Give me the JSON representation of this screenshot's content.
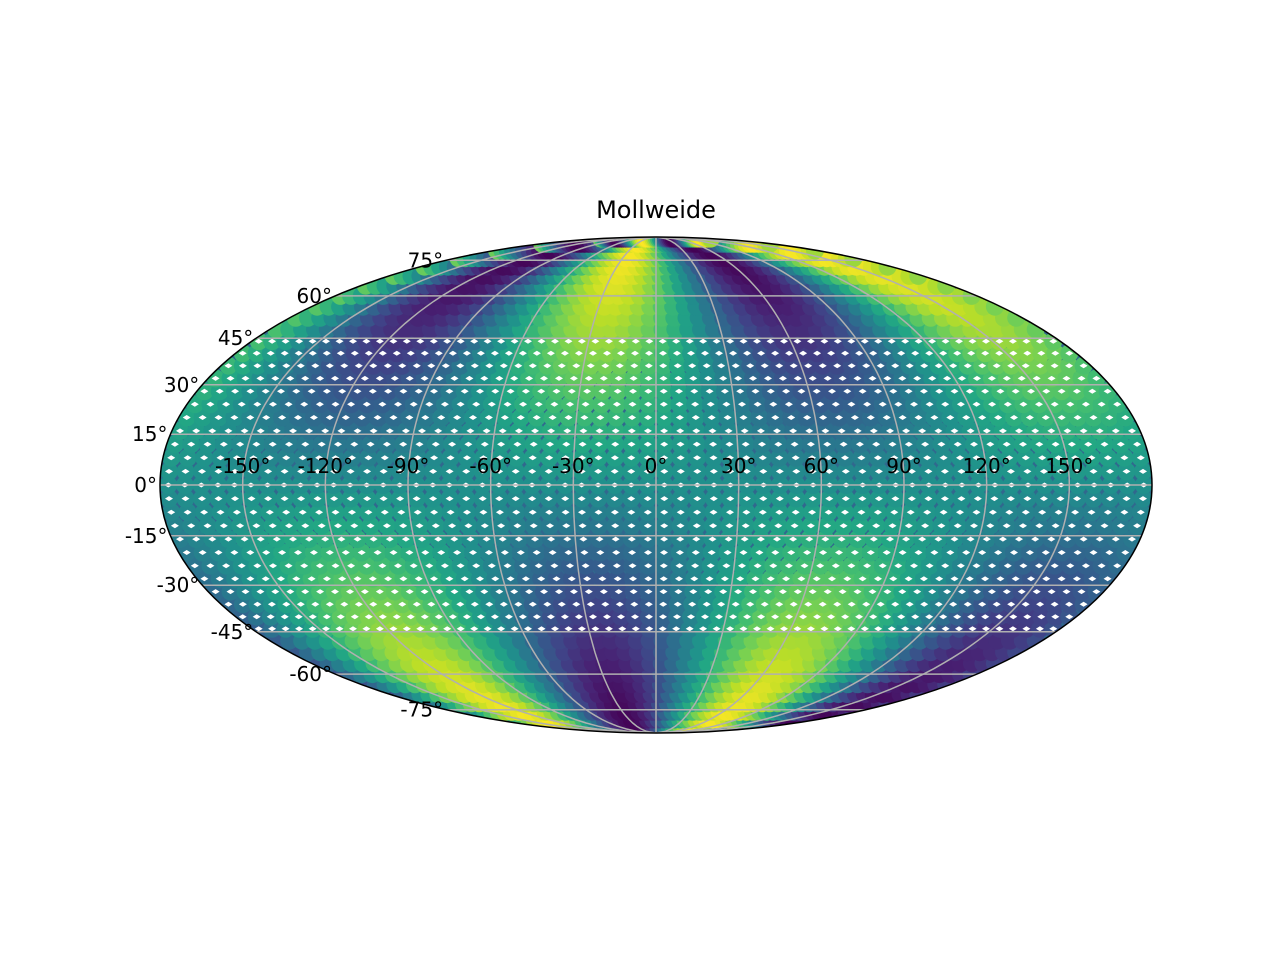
{
  "chart_data": {
    "type": "heatmap",
    "projection": "mollweide",
    "title": "Mollweide",
    "xlabel": "",
    "ylabel": "",
    "x_ticks": [
      "-150°",
      "-120°",
      "-90°",
      "-60°",
      "-30°",
      "0°",
      "30°",
      "60°",
      "90°",
      "120°",
      "150°"
    ],
    "y_ticks": [
      "-75°",
      "-60°",
      "-45°",
      "-30°",
      "-15°",
      "0°",
      "15°",
      "30°",
      "45°",
      "60°",
      "75°"
    ],
    "x_tick_values": [
      -150,
      -120,
      -90,
      -60,
      -30,
      0,
      30,
      60,
      90,
      120,
      150
    ],
    "y_tick_values": [
      -75,
      -60,
      -45,
      -30,
      -15,
      0,
      15,
      30,
      45,
      60,
      75
    ],
    "xlim": [
      -180,
      180
    ],
    "ylim": [
      -90,
      90
    ],
    "grid": true,
    "colormap": "viridis",
    "color_field": {
      "description_of_values": "value = sin(lat) * sin(2 * (lon + 70°)), normalized 0..1",
      "lon_step_deg": 6,
      "lat_step_deg": 4,
      "min": -1,
      "max": 1
    },
    "highs": [
      {
        "lon": -95,
        "lat": 40
      },
      {
        "lon": 40,
        "lat": -40
      }
    ],
    "lows": [
      {
        "lon": 0,
        "lat": 25
      },
      {
        "lon": 95,
        "lat": 35
      },
      {
        "lon": -80,
        "lat": -40
      }
    ]
  },
  "colors": {
    "gridline": "#b0b0b0",
    "frame": "#000000",
    "marker_white": "#ffffff"
  }
}
